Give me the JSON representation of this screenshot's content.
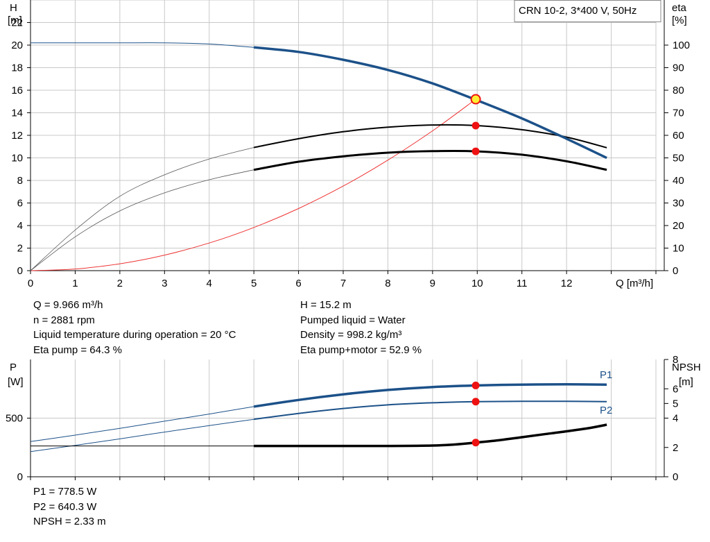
{
  "pump_label": "CRN 10-2, 3*400 V, 50Hz",
  "colors": {
    "head_curve": "#1c5189",
    "eta_curves": "#000000",
    "system_curve": "#ee3333",
    "duty_point": "#ee1111",
    "duty_point_highlight": "#ffee33",
    "grid": "#c8c8c8"
  },
  "chart_data": [
    {
      "name": "head-eta-chart",
      "type": "line",
      "xlabel": "Q [m³/h]",
      "ylabel": [
        "H",
        "[m]"
      ],
      "y2label": [
        "eta",
        "[%]"
      ],
      "xlim": [
        0,
        14
      ],
      "ylim": [
        0,
        24
      ],
      "y2lim": [
        0,
        120
      ],
      "xticks": [
        0,
        1,
        2,
        3,
        4,
        5,
        6,
        7,
        8,
        9,
        10,
        11,
        12
      ],
      "yticks": [
        0,
        2,
        4,
        6,
        8,
        10,
        12,
        14,
        16,
        18,
        20,
        22
      ],
      "y2ticks": [
        0,
        10,
        20,
        30,
        40,
        50,
        60,
        70,
        80,
        90,
        100
      ],
      "grid": true,
      "series": [
        {
          "name": "H",
          "axis": "left",
          "x": [
            0,
            1,
            2,
            3,
            4,
            5,
            6,
            7,
            8,
            9,
            10,
            11,
            12,
            12.9
          ],
          "y": [
            20.2,
            20.2,
            20.2,
            20.2,
            20.1,
            19.8,
            19.4,
            18.7,
            17.8,
            16.6,
            15.1,
            13.5,
            11.7,
            10.0
          ]
        },
        {
          "name": "eta pump",
          "axis": "right",
          "x": [
            0,
            1,
            2,
            3,
            4,
            5,
            6,
            7,
            8,
            9,
            10,
            11,
            12,
            12.9
          ],
          "y": [
            0,
            18,
            33,
            42.5,
            49.5,
            54.6,
            58.5,
            61.6,
            63.6,
            64.6,
            64.3,
            62.5,
            59.2,
            54.5
          ]
        },
        {
          "name": "eta pump+motor",
          "axis": "right",
          "x": [
            0,
            1,
            2,
            3,
            4,
            5,
            6,
            7,
            8,
            9,
            10,
            11,
            12,
            12.9
          ],
          "y": [
            0,
            15,
            26.5,
            34.5,
            40.3,
            44.7,
            48.3,
            50.7,
            52.3,
            53.0,
            52.9,
            51.4,
            48.5,
            44.7
          ]
        },
        {
          "name": "system curve",
          "axis": "left",
          "x": [
            0,
            1,
            2,
            3,
            4,
            5,
            6,
            7,
            8,
            9,
            9.966
          ],
          "y": [
            0,
            0.15,
            0.61,
            1.38,
            2.45,
            3.83,
            5.51,
            7.5,
            9.8,
            12.4,
            15.2
          ]
        }
      ],
      "duty_points": [
        {
          "axis": "left",
          "x": 9.966,
          "y": 15.2,
          "highlight": true
        },
        {
          "axis": "right",
          "x": 9.966,
          "y": 64.3
        },
        {
          "axis": "right",
          "x": 9.966,
          "y": 52.9
        }
      ]
    },
    {
      "name": "power-npsh-chart",
      "type": "line",
      "ylabel": [
        "P",
        "[W]"
      ],
      "y2label": [
        "NPSH",
        "[m]"
      ],
      "xlim": [
        0,
        14
      ],
      "ylim": [
        0,
        1000
      ],
      "y2lim": [
        0,
        8
      ],
      "yticks": [
        0,
        500
      ],
      "y2ticks": [
        0,
        2,
        4,
        5,
        6,
        8
      ],
      "grid": true,
      "series": [
        {
          "name": "P1",
          "axis": "left",
          "x": [
            0,
            1,
            2,
            3,
            4,
            5,
            6,
            7,
            8,
            9,
            10,
            11,
            12,
            12.9
          ],
          "y": [
            300,
            355,
            413,
            474,
            535,
            598,
            655,
            703,
            740,
            765,
            778.5,
            786,
            788,
            786
          ]
        },
        {
          "name": "P2",
          "axis": "left",
          "x": [
            0,
            1,
            2,
            3,
            4,
            5,
            6,
            7,
            8,
            9,
            10,
            11,
            12,
            12.9
          ],
          "y": [
            215,
            268,
            323,
            381,
            436,
            490,
            540,
            582,
            613,
            631,
            640.3,
            643,
            643,
            641
          ]
        },
        {
          "name": "NPSH",
          "axis": "right",
          "x": [
            0,
            5,
            6,
            7,
            8,
            9,
            9.5,
            9.966,
            10.5,
            11,
            11.5,
            12,
            12.5,
            12.9
          ],
          "y": [
            2.1,
            2.1,
            2.1,
            2.1,
            2.1,
            2.13,
            2.2,
            2.33,
            2.5,
            2.7,
            2.9,
            3.1,
            3.32,
            3.55
          ]
        }
      ],
      "series_labels": [
        "P1",
        "P2"
      ],
      "duty_points": [
        {
          "axis": "left",
          "x": 9.966,
          "y": 778.5
        },
        {
          "axis": "left",
          "x": 9.966,
          "y": 640.3
        },
        {
          "axis": "right",
          "x": 9.966,
          "y": 2.33
        }
      ]
    }
  ],
  "duty_info": {
    "left": [
      "Q = 9.966 m³/h",
      "n = 2881 rpm",
      "Liquid temperature during operation = 20 °C",
      "Eta pump = 64.3 %"
    ],
    "right": [
      "H = 15.2 m",
      "Pumped liquid = Water",
      "Density = 998.2 kg/m³",
      "Eta pump+motor = 52.9 %"
    ],
    "power": [
      "P1 = 778.5 W",
      "P2 = 640.3 W",
      "NPSH = 2.33 m"
    ]
  }
}
